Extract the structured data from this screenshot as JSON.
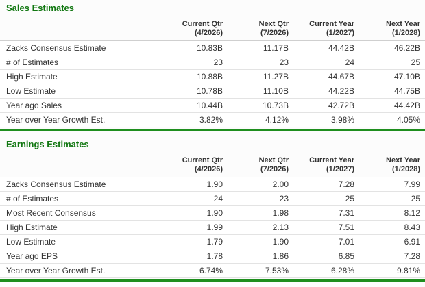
{
  "colors": {
    "title_green": "#117711",
    "rule_green": "#1e8e1e",
    "text": "#333333"
  },
  "chart_data": [
    {
      "type": "table",
      "title": "Sales Estimates",
      "columns": [
        {
          "line1": "Current Qtr",
          "line2": "(4/2026)"
        },
        {
          "line1": "Next Qtr",
          "line2": "(7/2026)"
        },
        {
          "line1": "Current Year",
          "line2": "(1/2027)"
        },
        {
          "line1": "Next Year",
          "line2": "(1/2028)"
        }
      ],
      "rows": [
        {
          "label": "Zacks Consensus Estimate",
          "values": [
            "10.83B",
            "11.17B",
            "44.42B",
            "46.22B"
          ]
        },
        {
          "label": "# of Estimates",
          "values": [
            "23",
            "23",
            "24",
            "25"
          ]
        },
        {
          "label": "High Estimate",
          "values": [
            "10.88B",
            "11.27B",
            "44.67B",
            "47.10B"
          ]
        },
        {
          "label": "Low Estimate",
          "values": [
            "10.78B",
            "11.10B",
            "44.22B",
            "44.75B"
          ]
        },
        {
          "label": "Year ago Sales",
          "values": [
            "10.44B",
            "10.73B",
            "42.72B",
            "44.42B"
          ]
        },
        {
          "label": "Year over Year Growth Est.",
          "values": [
            "3.82%",
            "4.12%",
            "3.98%",
            "4.05%"
          ]
        }
      ]
    },
    {
      "type": "table",
      "title": "Earnings Estimates",
      "columns": [
        {
          "line1": "Current Qtr",
          "line2": "(4/2026)"
        },
        {
          "line1": "Next Qtr",
          "line2": "(7/2026)"
        },
        {
          "line1": "Current Year",
          "line2": "(1/2027)"
        },
        {
          "line1": "Next Year",
          "line2": "(1/2028)"
        }
      ],
      "rows": [
        {
          "label": "Zacks Consensus Estimate",
          "values": [
            "1.90",
            "2.00",
            "7.28",
            "7.99"
          ]
        },
        {
          "label": "# of Estimates",
          "values": [
            "24",
            "23",
            "25",
            "25"
          ]
        },
        {
          "label": "Most Recent Consensus",
          "values": [
            "1.90",
            "1.98",
            "7.31",
            "8.12"
          ]
        },
        {
          "label": "High Estimate",
          "values": [
            "1.99",
            "2.13",
            "7.51",
            "8.43"
          ]
        },
        {
          "label": "Low Estimate",
          "values": [
            "1.79",
            "1.90",
            "7.01",
            "6.91"
          ]
        },
        {
          "label": "Year ago EPS",
          "values": [
            "1.78",
            "1.86",
            "6.85",
            "7.28"
          ]
        },
        {
          "label": "Year over Year Growth Est.",
          "values": [
            "6.74%",
            "7.53%",
            "6.28%",
            "9.81%"
          ]
        }
      ]
    }
  ]
}
